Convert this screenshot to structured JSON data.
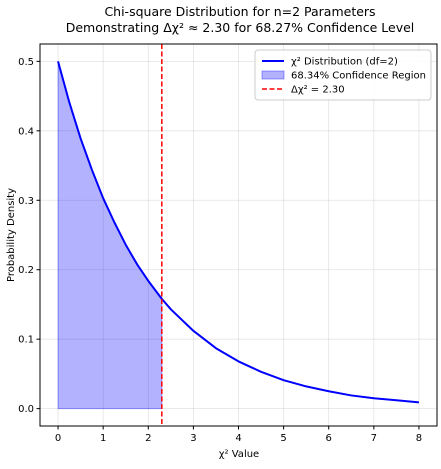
{
  "chart_data": {
    "type": "line",
    "title": "Chi-square Distribution for n=2 Parameters",
    "subtitle": "Demonstrating Δχ² ≈ 2.30 for 68.27% Confidence Level",
    "xlabel": "χ² Value",
    "ylabel": "Probability Density",
    "xlim": [
      -0.4,
      8.4
    ],
    "ylim": [
      -0.025,
      0.525
    ],
    "xticks": [
      "0",
      "1",
      "2",
      "3",
      "4",
      "5",
      "6",
      "7",
      "8"
    ],
    "xtick_values": [
      0,
      1,
      2,
      3,
      4,
      5,
      6,
      7,
      8
    ],
    "yticks": [
      "0.0",
      "0.1",
      "0.2",
      "0.3",
      "0.4",
      "0.5"
    ],
    "ytick_values": [
      0,
      0.1,
      0.2,
      0.3,
      0.4,
      0.5
    ],
    "grid": true,
    "legend_position": "top-right",
    "series": [
      {
        "name": "χ² Distribution (df=2)",
        "color": "#0000ff",
        "x": [
          0,
          0.25,
          0.5,
          0.75,
          1,
          1.25,
          1.5,
          1.75,
          2,
          2.3,
          2.5,
          3,
          3.5,
          4,
          4.5,
          5,
          5.5,
          6,
          6.5,
          7,
          7.5,
          8
        ],
        "y": [
          0.5,
          0.441,
          0.389,
          0.344,
          0.303,
          0.268,
          0.236,
          0.208,
          0.184,
          0.158,
          0.143,
          0.112,
          0.087,
          0.068,
          0.053,
          0.041,
          0.032,
          0.025,
          0.019,
          0.015,
          0.012,
          0.009
        ]
      }
    ],
    "fill_region": {
      "name": "68.34% Confidence Region",
      "color": "#0000ff",
      "x_from": 0,
      "x_to": 2.3
    },
    "vline": {
      "name": "Δχ² = 2.30",
      "x": 2.3,
      "color": "#ff0000"
    }
  }
}
